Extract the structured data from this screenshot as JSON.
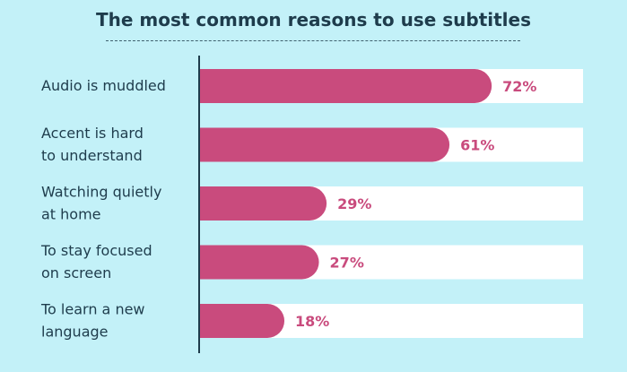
{
  "chart_data": {
    "type": "bar",
    "orientation": "horizontal",
    "title": "The most common reasons to use subtitles",
    "categories": [
      [
        "Audio is muddled"
      ],
      [
        "Accent is hard",
        "to understand"
      ],
      [
        "Watching quietly",
        "at home"
      ],
      [
        "To stay focused",
        "on screen"
      ],
      [
        "To learn a new",
        "language"
      ]
    ],
    "values": [
      72,
      61,
      29,
      27,
      18
    ],
    "value_labels": [
      "72%",
      "61%",
      "29%",
      "27%",
      "18%"
    ],
    "xlim": [
      0,
      100
    ],
    "grid": false,
    "legend": "none",
    "colors": {
      "bar": "#c94b7d",
      "track": "#ffffff",
      "background": "#c3f1f8",
      "text": "#1e3c4c",
      "value_text": "#c94b7d"
    }
  }
}
